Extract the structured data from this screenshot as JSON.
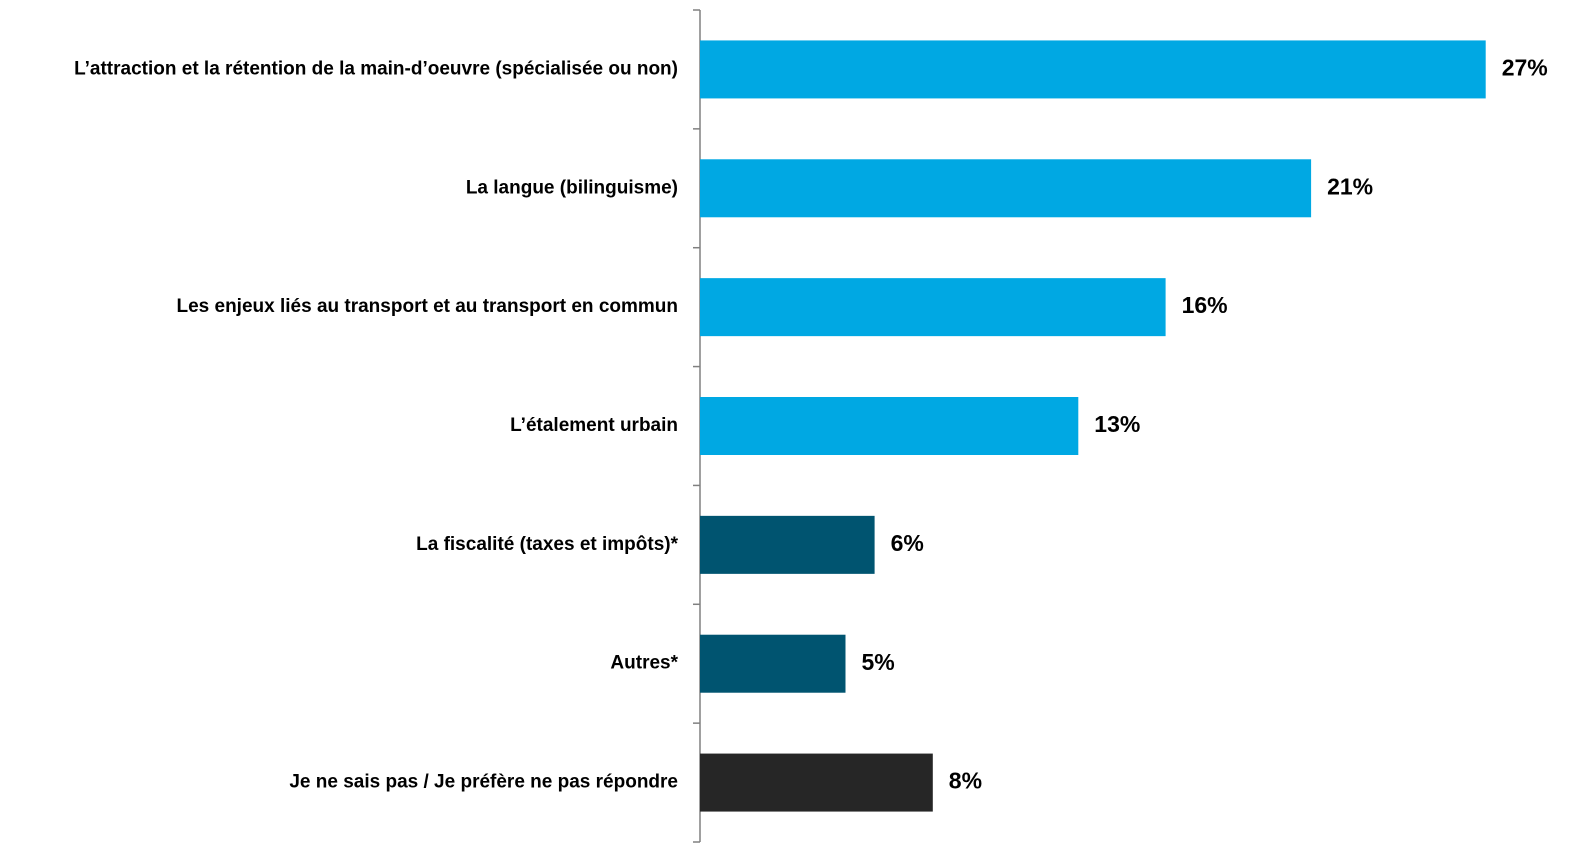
{
  "chart_data": {
    "type": "bar",
    "orientation": "horizontal",
    "categories": [
      "L’attraction et la rétention de la main-d’oeuvre (spécialisée ou non)",
      "La langue (bilinguisme)",
      "Les enjeux liés au transport et au transport en commun",
      "L’étalement urbain",
      "La fiscalité (taxes et impôts)*",
      "Autres*",
      "Je ne sais pas / Je préfère ne pas répondre"
    ],
    "values": [
      27,
      21,
      16,
      13,
      6,
      5,
      8
    ],
    "value_labels": [
      "27%",
      "21%",
      "16%",
      "13%",
      "6%",
      "5%",
      "8%"
    ],
    "colors": [
      "#00a8e3",
      "#00a8e3",
      "#00a8e3",
      "#00a8e3",
      "#005470",
      "#005470",
      "#262626"
    ]
  }
}
